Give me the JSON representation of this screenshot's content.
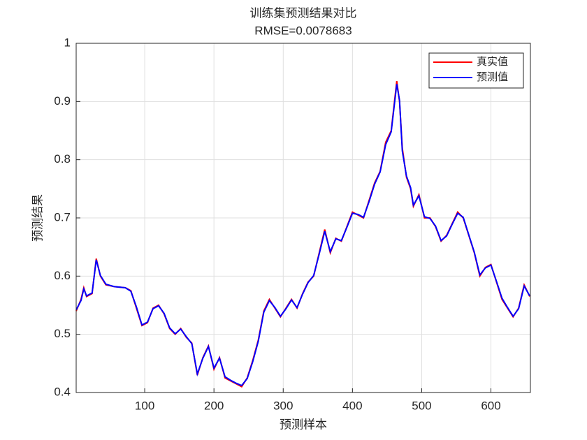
{
  "chart_data": {
    "type": "line",
    "title": "训练集预测结果对比",
    "subtitle": "RMSE=0.0078683",
    "x_label": "预测样本",
    "y_label": "预测结果",
    "x": [
      1,
      8,
      12,
      16,
      24,
      30,
      36,
      44,
      56,
      72,
      80,
      88,
      96,
      104,
      112,
      120,
      128,
      136,
      144,
      152,
      160,
      168,
      176,
      184,
      192,
      200,
      208,
      216,
      224,
      232,
      240,
      248,
      256,
      264,
      272,
      280,
      288,
      296,
      304,
      312,
      320,
      328,
      336,
      344,
      352,
      360,
      368,
      376,
      384,
      392,
      400,
      408,
      416,
      424,
      432,
      440,
      448,
      456,
      464,
      468,
      472,
      478,
      484,
      488,
      496,
      504,
      512,
      520,
      528,
      536,
      544,
      552,
      560,
      568,
      576,
      584,
      592,
      600,
      608,
      616,
      624,
      632,
      640,
      648,
      656
    ],
    "series": [
      {
        "name": "真实值",
        "color": "#ff0000",
        "values": [
          0.54,
          0.56,
          0.58,
          0.565,
          0.57,
          0.63,
          0.6,
          0.585,
          0.582,
          0.58,
          0.575,
          0.545,
          0.515,
          0.52,
          0.545,
          0.55,
          0.535,
          0.51,
          0.5,
          0.51,
          0.495,
          0.485,
          0.43,
          0.46,
          0.48,
          0.44,
          0.46,
          0.425,
          0.42,
          0.415,
          0.41,
          0.425,
          0.455,
          0.49,
          0.54,
          0.56,
          0.545,
          0.53,
          0.545,
          0.56,
          0.545,
          0.57,
          0.59,
          0.6,
          0.64,
          0.68,
          0.64,
          0.665,
          0.66,
          0.685,
          0.71,
          0.705,
          0.7,
          0.73,
          0.76,
          0.78,
          0.83,
          0.85,
          0.935,
          0.9,
          0.82,
          0.77,
          0.75,
          0.72,
          0.74,
          0.7,
          0.7,
          0.685,
          0.66,
          0.67,
          0.69,
          0.71,
          0.7,
          0.67,
          0.64,
          0.6,
          0.615,
          0.62,
          0.59,
          0.56,
          0.545,
          0.53,
          0.545,
          0.585,
          0.565
        ]
      },
      {
        "name": "预测值",
        "color": "#0000ff",
        "values": [
          0.542,
          0.558,
          0.578,
          0.566,
          0.571,
          0.628,
          0.601,
          0.586,
          0.582,
          0.58,
          0.574,
          0.547,
          0.516,
          0.521,
          0.544,
          0.549,
          0.536,
          0.511,
          0.501,
          0.509,
          0.496,
          0.484,
          0.432,
          0.459,
          0.479,
          0.442,
          0.459,
          0.427,
          0.421,
          0.416,
          0.412,
          0.424,
          0.453,
          0.488,
          0.538,
          0.558,
          0.546,
          0.531,
          0.544,
          0.559,
          0.546,
          0.569,
          0.589,
          0.601,
          0.638,
          0.677,
          0.642,
          0.664,
          0.661,
          0.684,
          0.708,
          0.706,
          0.701,
          0.728,
          0.758,
          0.779,
          0.826,
          0.848,
          0.93,
          0.902,
          0.815,
          0.772,
          0.752,
          0.722,
          0.738,
          0.702,
          0.699,
          0.686,
          0.661,
          0.669,
          0.689,
          0.708,
          0.701,
          0.671,
          0.641,
          0.602,
          0.614,
          0.619,
          0.591,
          0.562,
          0.546,
          0.531,
          0.544,
          0.583,
          0.566
        ]
      }
    ],
    "xlim": [
      1,
      657
    ],
    "xticks": [
      100,
      200,
      300,
      400,
      500,
      600
    ],
    "ylim": [
      0.4,
      1
    ],
    "yticks": [
      0.4,
      0.5,
      0.6,
      0.7,
      0.8,
      0.9,
      1
    ],
    "grid": true,
    "legend": "top-right"
  }
}
